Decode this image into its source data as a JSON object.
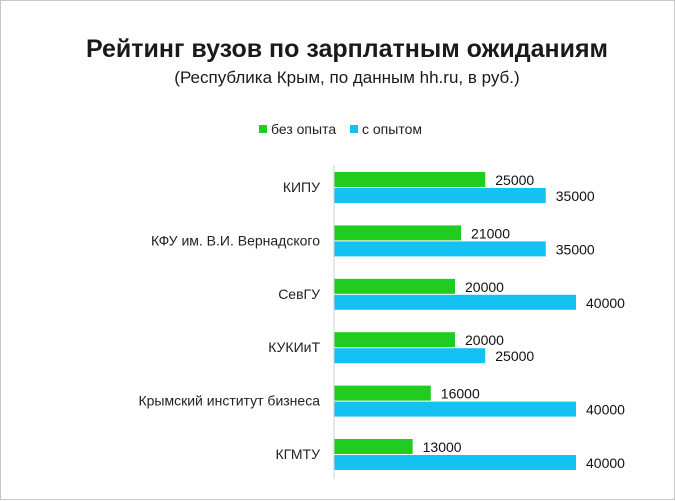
{
  "chart_data": {
    "type": "bar",
    "orientation": "horizontal",
    "title": "Рейтинг вузов по зарплатным ожиданиям",
    "subtitle": "(Республика Крым, по данным hh.ru,  в руб.)",
    "categories": [
      "КИПУ",
      "КФУ им. В.И. Вернадского",
      "СевГУ",
      "КУКИиТ",
      "Крымский институт бизнеса",
      "КГМТУ"
    ],
    "series": [
      {
        "name": "без опыта",
        "color": "#21cc21",
        "values": [
          25000,
          21000,
          20000,
          20000,
          16000,
          13000
        ]
      },
      {
        "name": "с опытом",
        "color": "#13c1f3",
        "values": [
          35000,
          35000,
          40000,
          25000,
          40000,
          40000
        ]
      }
    ],
    "xlim": [
      0,
      40000
    ],
    "grid": false,
    "legend_position": "top",
    "data_labels": true
  }
}
